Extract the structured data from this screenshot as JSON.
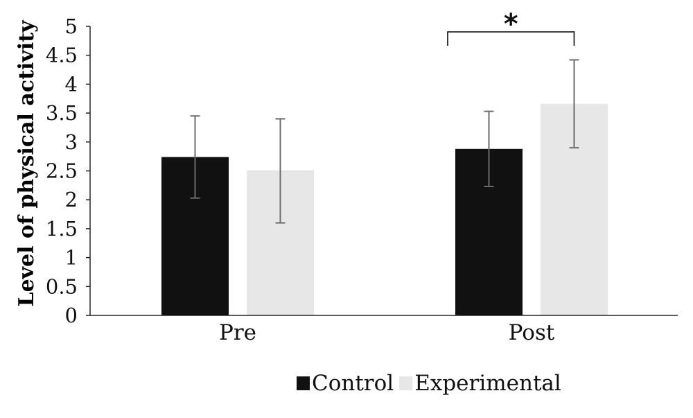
{
  "chart_data": {
    "type": "bar",
    "title": "",
    "xlabel": "",
    "ylabel": "Level of physical activity",
    "categories": [
      "Pre",
      "Post"
    ],
    "ylim": [
      0,
      5
    ],
    "yticks": [
      "0",
      "0.5",
      "1",
      "1.5",
      "2",
      "2.5",
      "3",
      "3.5",
      "4",
      "4.5",
      "5"
    ],
    "grid": false,
    "legend_position": "bottom",
    "series": [
      {
        "name": "Control",
        "color": "#111111",
        "values": [
          2.74,
          2.88
        ],
        "error_low": [
          2.03,
          2.23
        ],
        "error_high": [
          3.45,
          3.53
        ]
      },
      {
        "name": "Experimental",
        "color": "#e6e7e6",
        "values": [
          2.51,
          3.66
        ],
        "error_low": [
          1.6,
          2.9
        ],
        "error_high": [
          3.4,
          4.42
        ]
      }
    ],
    "annotations": [
      {
        "text": "*",
        "category": "Post",
        "between": [
          "Control",
          "Experimental"
        ]
      }
    ]
  }
}
